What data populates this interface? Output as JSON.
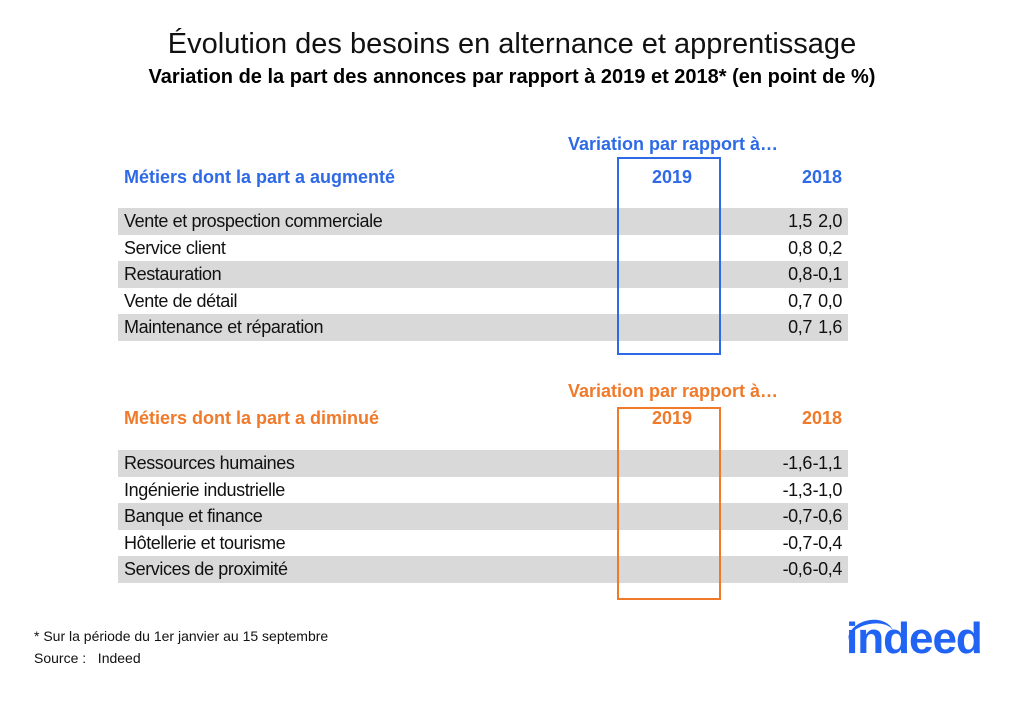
{
  "title": "Évolution des besoins en alternance et apprentissage",
  "subtitle": "Variation de la part des annonces par rapport à 2019 et 2018* (en point de %)",
  "colors": {
    "increase": "#2f6ae6",
    "decrease": "#f07a2a",
    "row_gray": "#d9d9d9",
    "logo": "#2164f3"
  },
  "increase": {
    "variation_label": "Variation par rapport à…",
    "heading": "Métiers dont la part a augmenté",
    "col1": "2019",
    "col2": "2018",
    "rows": [
      {
        "label": "Vente et prospection commerciale",
        "v2019": "1,5",
        "v2018": "2,0"
      },
      {
        "label": "Service client",
        "v2019": "0,8",
        "v2018": "0,2"
      },
      {
        "label": "Restauration",
        "v2019": "0,8",
        "v2018": "-0,1"
      },
      {
        "label": "Vente de détail",
        "v2019": "0,7",
        "v2018": "0,0"
      },
      {
        "label": "Maintenance et réparation",
        "v2019": "0,7",
        "v2018": "1,6"
      }
    ]
  },
  "decrease": {
    "variation_label": "Variation par rapport à…",
    "heading": "Métiers dont la part a diminué",
    "col1": "2019",
    "col2": "2018",
    "rows": [
      {
        "label": "Ressources humaines",
        "v2019": "-1,6",
        "v2018": "-1,1"
      },
      {
        "label": "Ingénierie industrielle",
        "v2019": "-1,3",
        "v2018": "-1,0"
      },
      {
        "label": "Banque et finance",
        "v2019": "-0,7",
        "v2018": "-0,6"
      },
      {
        "label": "Hôtellerie et tourisme",
        "v2019": "-0,7",
        "v2018": "-0,4"
      },
      {
        "label": "Services de proximité",
        "v2019": "-0,6",
        "v2018": "-0,4"
      }
    ]
  },
  "footnote": "* Sur la période du 1er janvier au 15 septembre",
  "source": "Source :   Indeed",
  "logo": "indeed"
}
